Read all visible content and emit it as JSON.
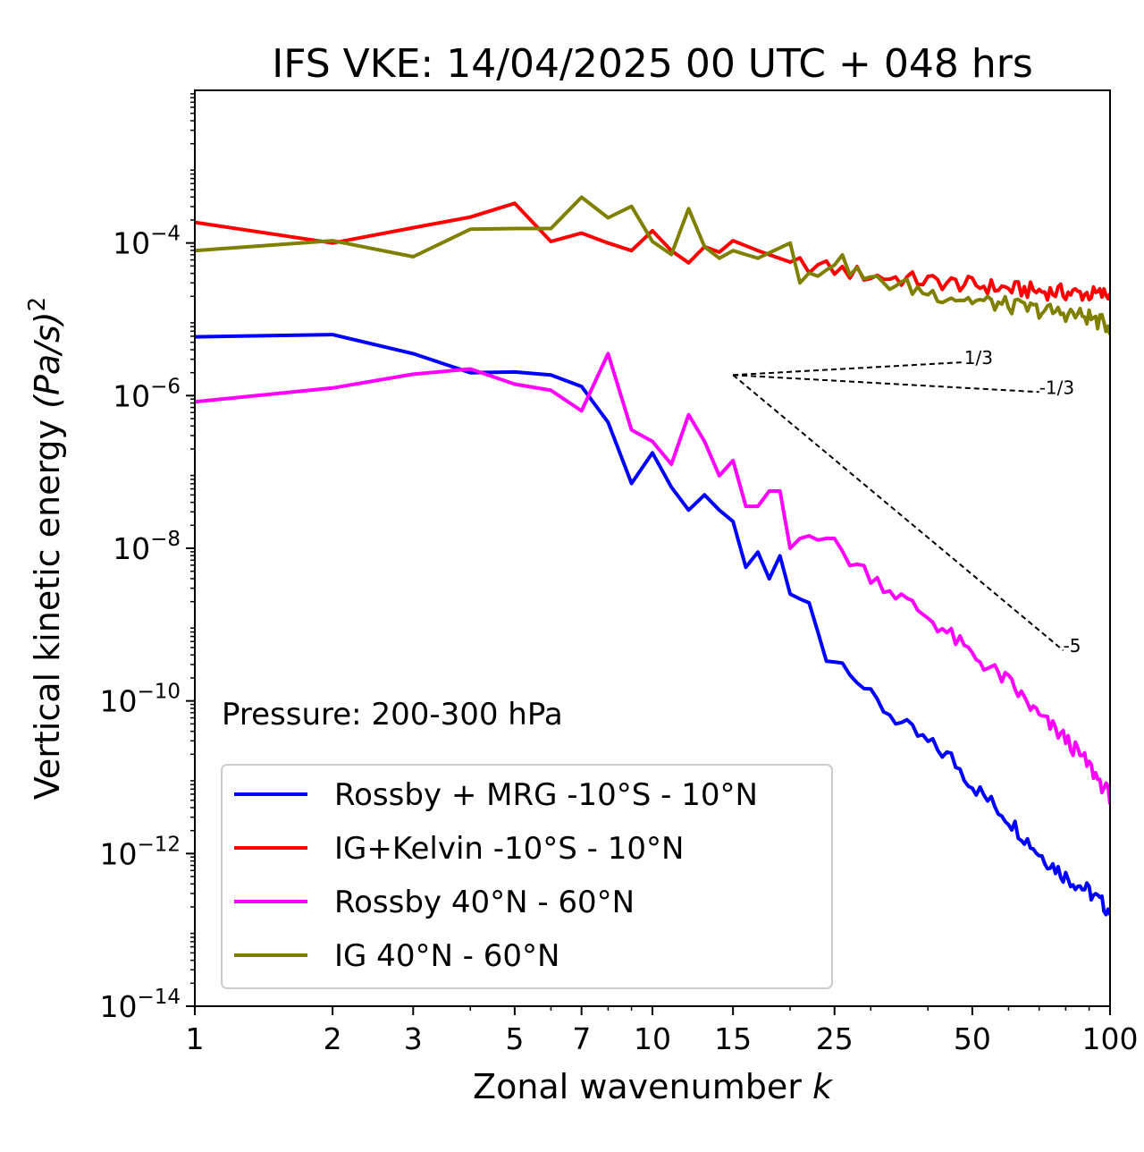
{
  "chart_data": {
    "type": "line",
    "title": "IFS VKE: 14/04/2025 00 UTC + 048 hrs",
    "xlabel": "Zonal wavenumber",
    "xlabel_var": "k",
    "ylabel": "Vertical kinetic energy",
    "ylabel_units": "(Pa/s)",
    "ylabel_power": "2",
    "xscale": "log",
    "yscale": "log",
    "xlim": [
      1,
      100
    ],
    "ylim": [
      1e-14,
      0.01
    ],
    "x_ticks": [
      {
        "value": 1,
        "label": "1"
      },
      {
        "value": 2,
        "label": "2"
      },
      {
        "value": 3,
        "label": "3"
      },
      {
        "value": 5,
        "label": "5"
      },
      {
        "value": 7,
        "label": "7"
      },
      {
        "value": 10,
        "label": "10"
      },
      {
        "value": 15,
        "label": "15"
      },
      {
        "value": 25,
        "label": "25"
      },
      {
        "value": 50,
        "label": "50"
      },
      {
        "value": 100,
        "label": "100"
      }
    ],
    "y_ticks": [
      {
        "exp": -14,
        "base": "10",
        "power": "−14"
      },
      {
        "exp": -12,
        "base": "10",
        "power": "−12"
      },
      {
        "exp": -10,
        "base": "10",
        "power": "−10"
      },
      {
        "exp": -8,
        "base": "10",
        "power": "−8"
      },
      {
        "exp": -6,
        "base": "10",
        "power": "−6"
      },
      {
        "exp": -4,
        "base": "10",
        "power": "−4"
      }
    ],
    "grid": false,
    "legend_position": "lower-left",
    "annotation": "Pressure: 200-300 hPa",
    "series": [
      {
        "name": "Rossby + MRG -10°S - 10°N",
        "color": "#0000ff",
        "log10_y_anchors": [
          [
            1,
            -5.23
          ],
          [
            2,
            -5.2
          ],
          [
            3,
            -5.45
          ],
          [
            4,
            -5.7
          ],
          [
            5,
            -5.69
          ],
          [
            6,
            -5.73
          ],
          [
            7,
            -5.88
          ],
          [
            8,
            -6.35
          ],
          [
            9,
            -7.15
          ],
          [
            10,
            -6.75
          ],
          [
            11,
            -7.2
          ],
          [
            12,
            -7.5
          ],
          [
            13,
            -7.3
          ],
          [
            14,
            -7.5
          ],
          [
            15,
            -7.65
          ],
          [
            16,
            -8.25
          ],
          [
            17,
            -8.05
          ],
          [
            18,
            -8.4
          ],
          [
            19,
            -8.1
          ],
          [
            20,
            -8.6
          ],
          [
            22,
            -8.75
          ],
          [
            24,
            -9.4
          ],
          [
            27,
            -9.55
          ],
          [
            30,
            -9.95
          ],
          [
            35,
            -10.3
          ],
          [
            40,
            -10.55
          ],
          [
            45,
            -10.75
          ],
          [
            50,
            -11.1
          ],
          [
            60,
            -11.55
          ],
          [
            70,
            -12.0
          ],
          [
            80,
            -12.3
          ],
          [
            90,
            -12.5
          ],
          [
            100,
            -12.75
          ]
        ]
      },
      {
        "name": "IG+Kelvin -10°S - 10°N",
        "color": "#ff0000",
        "log10_y_anchors": [
          [
            1,
            -3.73
          ],
          [
            2,
            -4.0
          ],
          [
            3,
            -3.8
          ],
          [
            4,
            -3.66
          ],
          [
            5,
            -3.48
          ],
          [
            6,
            -3.98
          ],
          [
            7,
            -3.87
          ],
          [
            8,
            -4.0
          ],
          [
            9,
            -4.1
          ],
          [
            10,
            -3.84
          ],
          [
            11,
            -4.1
          ],
          [
            12,
            -4.26
          ],
          [
            13,
            -4.05
          ],
          [
            14,
            -4.12
          ],
          [
            15,
            -3.97
          ],
          [
            17,
            -4.1
          ],
          [
            20,
            -4.25
          ],
          [
            25,
            -4.35
          ],
          [
            30,
            -4.43
          ],
          [
            40,
            -4.5
          ],
          [
            50,
            -4.55
          ],
          [
            60,
            -4.6
          ],
          [
            70,
            -4.63
          ],
          [
            80,
            -4.65
          ],
          [
            90,
            -4.67
          ],
          [
            100,
            -4.68
          ]
        ]
      },
      {
        "name": "Rossby 40°N - 60°N",
        "color": "#ff00ff",
        "log10_y_anchors": [
          [
            1,
            -6.08
          ],
          [
            2,
            -5.9
          ],
          [
            3,
            -5.72
          ],
          [
            4,
            -5.65
          ],
          [
            5,
            -5.85
          ],
          [
            6,
            -5.93
          ],
          [
            7,
            -6.2
          ],
          [
            8,
            -5.45
          ],
          [
            9,
            -6.45
          ],
          [
            10,
            -6.6
          ],
          [
            11,
            -6.9
          ],
          [
            12,
            -6.25
          ],
          [
            13,
            -6.6
          ],
          [
            14,
            -7.05
          ],
          [
            15,
            -6.85
          ],
          [
            16,
            -7.45
          ],
          [
            17,
            -7.45
          ],
          [
            18,
            -7.25
          ],
          [
            19,
            -7.25
          ],
          [
            20,
            -8.0
          ],
          [
            22,
            -7.75
          ],
          [
            24,
            -7.85
          ],
          [
            27,
            -8.15
          ],
          [
            30,
            -8.35
          ],
          [
            35,
            -8.65
          ],
          [
            40,
            -8.9
          ],
          [
            45,
            -9.15
          ],
          [
            50,
            -9.4
          ],
          [
            60,
            -9.75
          ],
          [
            70,
            -10.2
          ],
          [
            80,
            -10.5
          ],
          [
            90,
            -10.85
          ],
          [
            100,
            -11.25
          ]
        ]
      },
      {
        "name": "IG 40°N - 60°N",
        "color": "#808000",
        "log10_y_anchors": [
          [
            1,
            -4.1
          ],
          [
            2,
            -3.97
          ],
          [
            3,
            -4.18
          ],
          [
            4,
            -3.82
          ],
          [
            5,
            -3.81
          ],
          [
            6,
            -3.81
          ],
          [
            7,
            -3.4
          ],
          [
            8,
            -3.67
          ],
          [
            9,
            -3.52
          ],
          [
            10,
            -3.98
          ],
          [
            11,
            -4.15
          ],
          [
            12,
            -3.55
          ],
          [
            13,
            -4.05
          ],
          [
            14,
            -4.2
          ],
          [
            15,
            -4.1
          ],
          [
            17,
            -4.2
          ],
          [
            20,
            -4.0
          ],
          [
            21,
            -4.55
          ],
          [
            25,
            -4.2
          ],
          [
            30,
            -4.5
          ],
          [
            35,
            -4.55
          ],
          [
            40,
            -4.65
          ],
          [
            50,
            -4.75
          ],
          [
            60,
            -4.82
          ],
          [
            70,
            -4.88
          ],
          [
            80,
            -4.92
          ],
          [
            90,
            -4.97
          ],
          [
            100,
            -5.1
          ]
        ]
      }
    ],
    "reference_lines": [
      {
        "label": "1/3",
        "slope": 0.333,
        "x_start": 15,
        "x_end": 48,
        "log10_y_start": -5.73
      },
      {
        "label": "-1/3",
        "slope": -0.333,
        "x_start": 15,
        "x_end": 70,
        "log10_y_start": -5.73
      },
      {
        "label": "-5",
        "slope": -5,
        "x_start": 15,
        "x_end": 79,
        "log10_y_start": -5.73
      }
    ]
  }
}
